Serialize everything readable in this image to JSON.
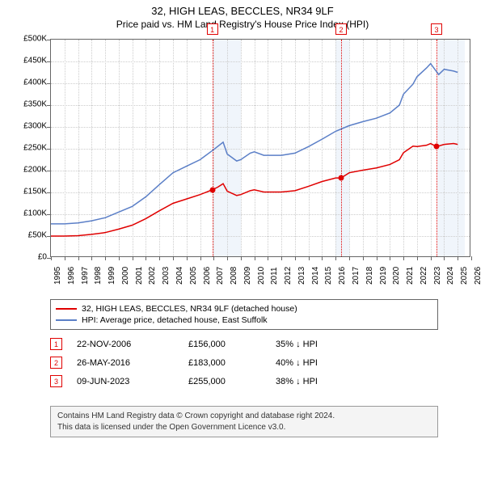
{
  "title_line1": "32, HIGH LEAS, BECCLES, NR34 9LF",
  "title_line2": "Price paid vs. HM Land Registry's House Price Index (HPI)",
  "chart": {
    "type": "line",
    "background_color": "#ffffff",
    "grid_color": "#cccccc",
    "border_color": "#666666",
    "x_min": 1995,
    "x_max": 2026,
    "y_min": 0,
    "y_max": 500000,
    "y_ticks": [
      0,
      50000,
      100000,
      150000,
      200000,
      250000,
      300000,
      350000,
      400000,
      450000,
      500000
    ],
    "y_tick_labels": [
      "£0",
      "£50K",
      "£100K",
      "£150K",
      "£200K",
      "£250K",
      "£300K",
      "£350K",
      "£400K",
      "£450K",
      "£500K"
    ],
    "x_ticks": [
      1995,
      1996,
      1997,
      1998,
      1999,
      2000,
      2001,
      2002,
      2003,
      2004,
      2005,
      2006,
      2007,
      2008,
      2009,
      2010,
      2011,
      2012,
      2013,
      2014,
      2015,
      2016,
      2017,
      2018,
      2019,
      2020,
      2021,
      2022,
      2023,
      2024,
      2025,
      2026
    ],
    "y_label_fontsize": 10,
    "x_label_fontsize": 10,
    "line_width": 1.5,
    "shade_color": "#e6eef9",
    "shade_regions": [
      [
        2007,
        2009
      ],
      [
        2016,
        2017
      ],
      [
        2023.5,
        2025.5
      ]
    ],
    "series": [
      {
        "name": "hpi",
        "color": "#5b7fc7",
        "label": "HPI: Average price, detached house, East Suffolk",
        "points": [
          [
            1995,
            78000
          ],
          [
            1996,
            78000
          ],
          [
            1997,
            80000
          ],
          [
            1998,
            85000
          ],
          [
            1999,
            92000
          ],
          [
            2000,
            105000
          ],
          [
            2001,
            118000
          ],
          [
            2002,
            140000
          ],
          [
            2003,
            168000
          ],
          [
            2004,
            195000
          ],
          [
            2005,
            210000
          ],
          [
            2006,
            225000
          ],
          [
            2007,
            248000
          ],
          [
            2007.7,
            265000
          ],
          [
            2008,
            238000
          ],
          [
            2008.7,
            222000
          ],
          [
            2009,
            225000
          ],
          [
            2009.7,
            240000
          ],
          [
            2010,
            243000
          ],
          [
            2010.7,
            235000
          ],
          [
            2011,
            235000
          ],
          [
            2012,
            235000
          ],
          [
            2013,
            240000
          ],
          [
            2014,
            255000
          ],
          [
            2015,
            272000
          ],
          [
            2016,
            290000
          ],
          [
            2017,
            303000
          ],
          [
            2018,
            312000
          ],
          [
            2019,
            320000
          ],
          [
            2020,
            332000
          ],
          [
            2020.7,
            350000
          ],
          [
            2021,
            375000
          ],
          [
            2021.7,
            398000
          ],
          [
            2022,
            415000
          ],
          [
            2022.7,
            435000
          ],
          [
            2023,
            445000
          ],
          [
            2023.6,
            420000
          ],
          [
            2024,
            432000
          ],
          [
            2024.7,
            428000
          ],
          [
            2025,
            425000
          ]
        ]
      },
      {
        "name": "property",
        "color": "#e00000",
        "label": "32, HIGH LEAS, BECCLES, NR34 9LF (detached house)",
        "points": [
          [
            1995,
            50000
          ],
          [
            1996,
            50000
          ],
          [
            1997,
            51000
          ],
          [
            1998,
            54000
          ],
          [
            1999,
            58000
          ],
          [
            2000,
            66000
          ],
          [
            2001,
            75000
          ],
          [
            2002,
            90000
          ],
          [
            2003,
            108000
          ],
          [
            2004,
            125000
          ],
          [
            2005,
            135000
          ],
          [
            2006,
            145000
          ],
          [
            2006.9,
            156000
          ],
          [
            2007.3,
            162000
          ],
          [
            2007.7,
            170000
          ],
          [
            2008,
            153000
          ],
          [
            2008.7,
            143000
          ],
          [
            2009,
            145000
          ],
          [
            2009.7,
            154000
          ],
          [
            2010,
            156000
          ],
          [
            2010.7,
            151000
          ],
          [
            2011,
            151000
          ],
          [
            2012,
            151000
          ],
          [
            2013,
            154000
          ],
          [
            2014,
            164000
          ],
          [
            2015,
            175000
          ],
          [
            2016,
            183000
          ],
          [
            2016.4,
            183000
          ],
          [
            2017,
            195000
          ],
          [
            2018,
            201000
          ],
          [
            2019,
            206000
          ],
          [
            2020,
            214000
          ],
          [
            2020.7,
            225000
          ],
          [
            2021,
            241000
          ],
          [
            2021.7,
            256000
          ],
          [
            2022,
            255000
          ],
          [
            2022.7,
            258000
          ],
          [
            2023,
            262000
          ],
          [
            2023.44,
            255000
          ],
          [
            2024,
            260000
          ],
          [
            2024.7,
            262000
          ],
          [
            2025,
            260000
          ]
        ]
      }
    ],
    "markers": [
      {
        "n": "1",
        "x": 2006.9,
        "y": 156000,
        "dot_color": "#e00000"
      },
      {
        "n": "2",
        "x": 2016.4,
        "y": 183000,
        "dot_color": "#e00000"
      },
      {
        "n": "3",
        "x": 2023.44,
        "y": 255000,
        "dot_color": "#e00000"
      }
    ],
    "marker_line_color": "#e00000",
    "marker_box_border": "#e00000"
  },
  "legend": {
    "items": [
      {
        "color": "#e00000",
        "label": "32, HIGH LEAS, BECCLES, NR34 9LF (detached house)"
      },
      {
        "color": "#5b7fc7",
        "label": "HPI: Average price, detached house, East Suffolk"
      }
    ]
  },
  "transactions": [
    {
      "n": "1",
      "date": "22-NOV-2006",
      "price": "£156,000",
      "diff": "35% ↓ HPI"
    },
    {
      "n": "2",
      "date": "26-MAY-2016",
      "price": "£183,000",
      "diff": "40% ↓ HPI"
    },
    {
      "n": "3",
      "date": "09-JUN-2023",
      "price": "£255,000",
      "diff": "38% ↓ HPI"
    }
  ],
  "footer_line1": "Contains HM Land Registry data © Crown copyright and database right 2024.",
  "footer_line2": "This data is licensed under the Open Government Licence v3.0."
}
